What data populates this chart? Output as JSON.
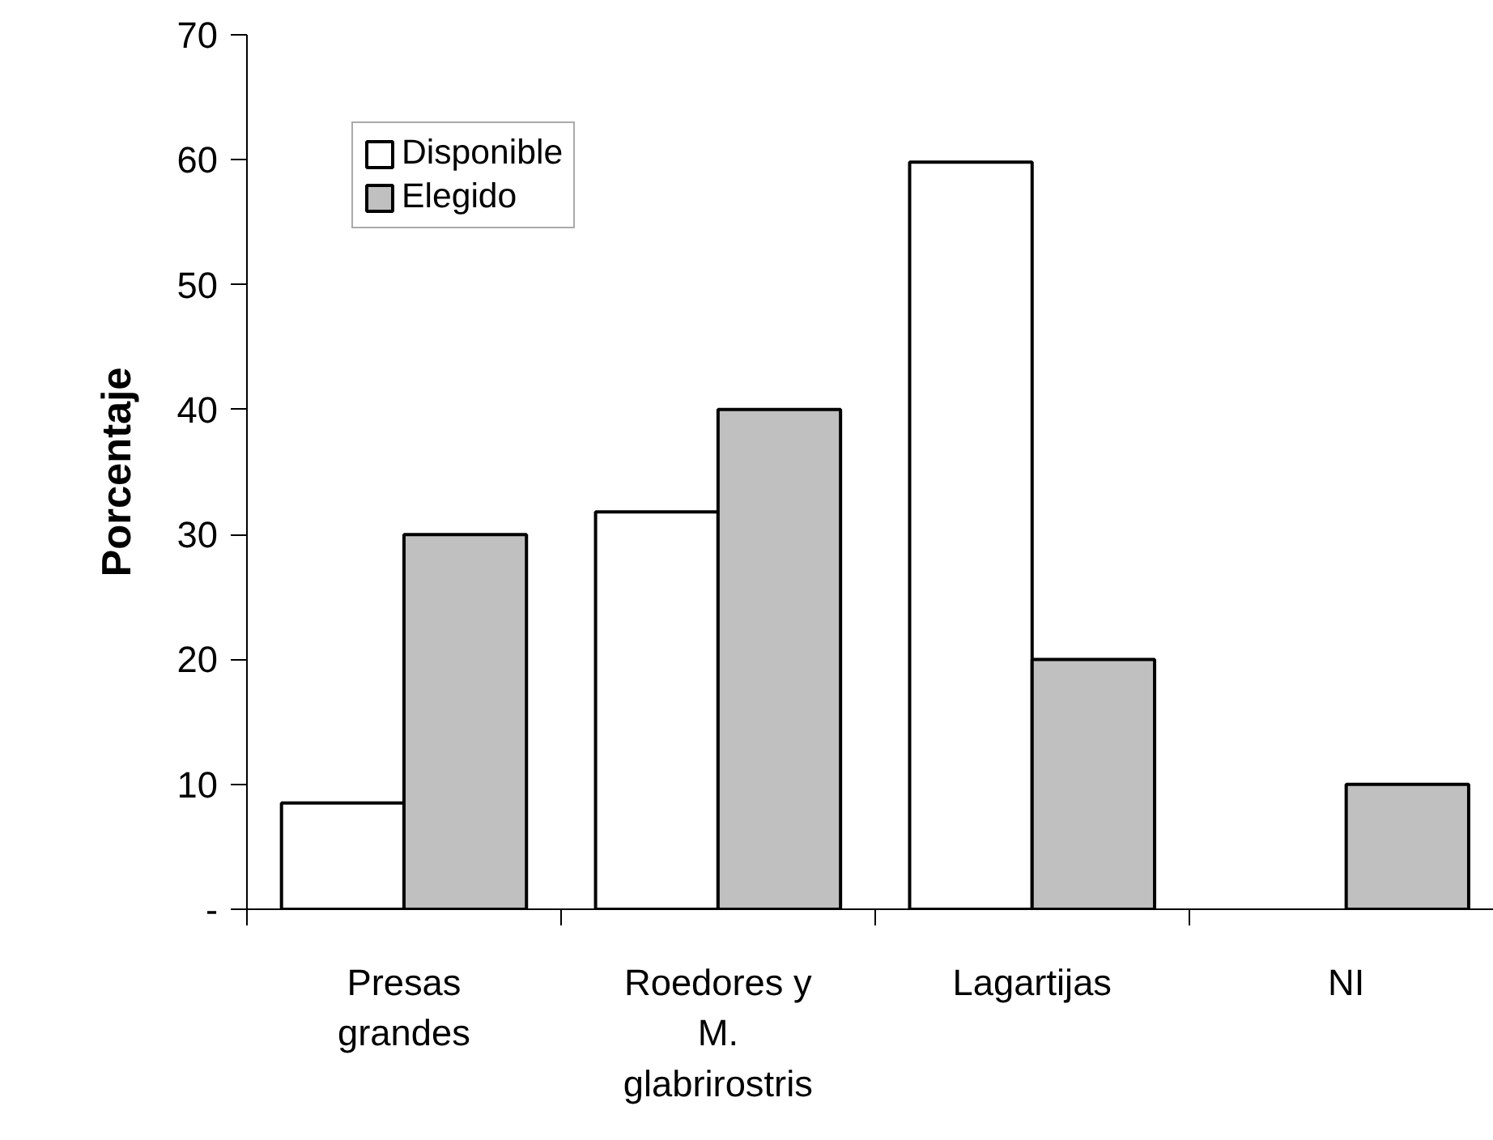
{
  "chart_data": {
    "type": "bar",
    "ylabel": "Porcentaje",
    "categories": [
      "Presas grandes",
      "Roedores y M. glabrirostris",
      "Lagartijas",
      "NI"
    ],
    "series": [
      {
        "name": "Disponible",
        "color": "#ffffff",
        "values": [
          8.5,
          31.8,
          59.8,
          null
        ]
      },
      {
        "name": "Elegido",
        "color": "#c0c0c0",
        "values": [
          30,
          40,
          20,
          10
        ]
      }
    ],
    "ylim": [
      0,
      70
    ],
    "yticks": [
      {
        "value": 0,
        "label": "-"
      },
      10,
      20,
      30,
      40,
      50,
      60,
      70
    ],
    "grid": false,
    "legend": "top left"
  }
}
